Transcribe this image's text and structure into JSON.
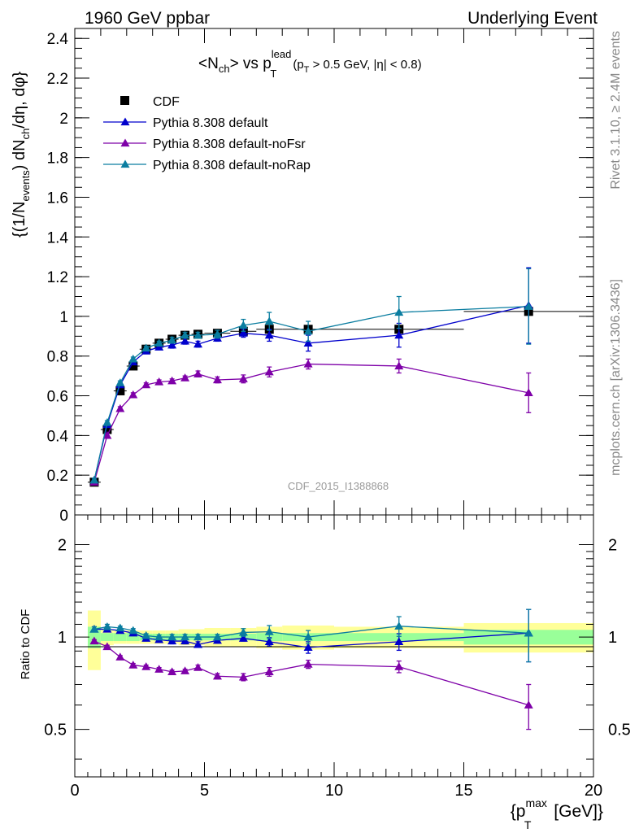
{
  "header": {
    "left": "1960 GeV ppbar",
    "right": "Underlying Event"
  },
  "side": {
    "rivet": "Rivet 3.1.10, ≥ 2.4M events",
    "mcplots": "mcplots.cern.ch [arXiv:1306.3436]"
  },
  "watermark": "CDF_2015_I1388868",
  "plot_title": {
    "a": "<N",
    "a_sub": "ch",
    "b": "> vs p",
    "b_sup": "lead",
    "b_sub": "T",
    "c": "(p",
    "c_sub": "T",
    "d": " > 0.5 GeV, |η| < 0.8)"
  },
  "ylabel": {
    "a": "{(1/N",
    "a_sub": "events",
    "b": ") dN",
    "b_sub": "ch",
    "c": "/dη, dφ}"
  },
  "ratio_label": "Ratio to CDF",
  "xlabel": {
    "a": "{p",
    "a_sup": "max",
    "a_sub": "T",
    "b": " [GeV]}"
  },
  "colors": {
    "data": "#000000",
    "default": "#0000cc",
    "noFsr": "#7e00a8",
    "noRap": "#0a7da0",
    "band_yellow": "#ffff99",
    "band_green": "#99ff99"
  },
  "chart_data": {
    "type": "scatter",
    "x_range": [
      0,
      20
    ],
    "main_y_range": [
      0,
      2.45
    ],
    "ratio_y_range": [
      0.35,
      2.5
    ],
    "ratio_y_scale": "log",
    "x_ticks": [
      "0",
      "5",
      "10",
      "15",
      "20"
    ],
    "main_y_ticks": [
      "0",
      "0.2",
      "0.4",
      "0.6",
      "0.8",
      "1",
      "1.2",
      "1.4",
      "1.6",
      "1.8",
      "2",
      "2.2",
      "2.4"
    ],
    "ratio_y_ticks": [
      "0.5",
      "1",
      "2"
    ],
    "legend_position": "top-left",
    "series": [
      {
        "name": "CDF",
        "x": [
          0.75,
          1.25,
          1.75,
          2.25,
          2.75,
          3.25,
          3.75,
          4.25,
          4.75,
          5.5,
          6.5,
          7.5,
          9,
          12.5,
          17.5
        ],
        "y": [
          0.165,
          0.43,
          0.625,
          0.75,
          0.835,
          0.865,
          0.885,
          0.905,
          0.91,
          0.915,
          0.925,
          0.935,
          0.935,
          0.935,
          1.025
        ],
        "xerr": [
          0.25,
          0.25,
          0.25,
          0.25,
          0.25,
          0.25,
          0.25,
          0.25,
          0.25,
          0.5,
          0.5,
          0.5,
          1,
          2.5,
          2.5
        ]
      },
      {
        "name": "Pythia 8.308 default",
        "x": [
          0.75,
          1.25,
          1.75,
          2.25,
          2.75,
          3.25,
          3.75,
          4.25,
          4.75,
          5.5,
          6.5,
          7.5,
          9,
          12.5,
          17.5
        ],
        "y": [
          0.175,
          0.455,
          0.655,
          0.77,
          0.825,
          0.845,
          0.855,
          0.875,
          0.86,
          0.89,
          0.915,
          0.905,
          0.865,
          0.905,
          1.055
        ],
        "err": [
          0.01,
          0.01,
          0.01,
          0.01,
          0.01,
          0.01,
          0.015,
          0.015,
          0.015,
          0.015,
          0.02,
          0.03,
          0.04,
          0.06,
          0.19
        ],
        "ratio": [
          1.06,
          1.06,
          1.05,
          1.03,
          0.99,
          0.98,
          0.97,
          0.97,
          0.945,
          0.975,
          0.99,
          0.965,
          0.925,
          0.965,
          1.03
        ],
        "ratio_err": [
          0.02,
          0.02,
          0.015,
          0.015,
          0.015,
          0.015,
          0.02,
          0.02,
          0.02,
          0.02,
          0.02,
          0.03,
          0.04,
          0.06,
          0.2
        ]
      },
      {
        "name": "Pythia 8.308 default-noFsr",
        "x": [
          0.75,
          1.25,
          1.75,
          2.25,
          2.75,
          3.25,
          3.75,
          4.25,
          4.75,
          5.5,
          6.5,
          7.5,
          9,
          12.5,
          17.5
        ],
        "y": [
          0.165,
          0.4,
          0.535,
          0.605,
          0.655,
          0.67,
          0.675,
          0.69,
          0.71,
          0.68,
          0.685,
          0.72,
          0.76,
          0.75,
          0.615
        ],
        "err": [
          0.01,
          0.01,
          0.01,
          0.01,
          0.01,
          0.01,
          0.01,
          0.01,
          0.015,
          0.015,
          0.02,
          0.025,
          0.025,
          0.035,
          0.1
        ],
        "ratio": [
          0.97,
          0.93,
          0.86,
          0.81,
          0.8,
          0.785,
          0.77,
          0.775,
          0.795,
          0.745,
          0.74,
          0.77,
          0.815,
          0.8,
          0.6
        ],
        "ratio_err": [
          0.01,
          0.01,
          0.01,
          0.01,
          0.01,
          0.01,
          0.01,
          0.01,
          0.015,
          0.015,
          0.02,
          0.025,
          0.025,
          0.035,
          0.1
        ]
      },
      {
        "name": "Pythia 8.308 default-noRap",
        "x": [
          0.75,
          1.25,
          1.75,
          2.25,
          2.75,
          3.25,
          3.75,
          4.25,
          4.75,
          5.5,
          6.5,
          7.5,
          9,
          12.5,
          17.5
        ],
        "y": [
          0.175,
          0.465,
          0.665,
          0.785,
          0.84,
          0.865,
          0.88,
          0.905,
          0.905,
          0.91,
          0.955,
          0.975,
          0.925,
          1.02,
          1.05
        ],
        "err": [
          0.01,
          0.01,
          0.01,
          0.01,
          0.01,
          0.01,
          0.015,
          0.015,
          0.015,
          0.02,
          0.03,
          0.045,
          0.05,
          0.08,
          0.19
        ],
        "ratio": [
          1.06,
          1.08,
          1.07,
          1.05,
          1.01,
          1.0,
          1.0,
          1.0,
          1.0,
          1.0,
          1.035,
          1.04,
          1.0,
          1.085,
          1.03
        ],
        "ratio_err": [
          0.02,
          0.02,
          0.015,
          0.015,
          0.015,
          0.015,
          0.02,
          0.02,
          0.02,
          0.02,
          0.03,
          0.05,
          0.05,
          0.08,
          0.2
        ]
      }
    ],
    "ratio_bands": {
      "x_lo": [
        0.5,
        1.0,
        1.5,
        2.0,
        2.5,
        3.0,
        3.5,
        4.0,
        4.5,
        5.0,
        6.0,
        7.0,
        8.0,
        10.0,
        15.0
      ],
      "x_hi": [
        1.0,
        1.5,
        2.0,
        2.5,
        3.0,
        3.5,
        4.0,
        4.5,
        5.0,
        6.0,
        7.0,
        8.0,
        10.0,
        15.0,
        20.0
      ],
      "yellow": [
        0.22,
        0.06,
        0.05,
        0.05,
        0.05,
        0.05,
        0.05,
        0.06,
        0.06,
        0.07,
        0.07,
        0.08,
        0.09,
        0.08,
        0.11
      ],
      "green": [
        0.08,
        0.03,
        0.03,
        0.03,
        0.025,
        0.025,
        0.025,
        0.025,
        0.025,
        0.025,
        0.025,
        0.03,
        0.03,
        0.03,
        0.055
      ]
    }
  }
}
